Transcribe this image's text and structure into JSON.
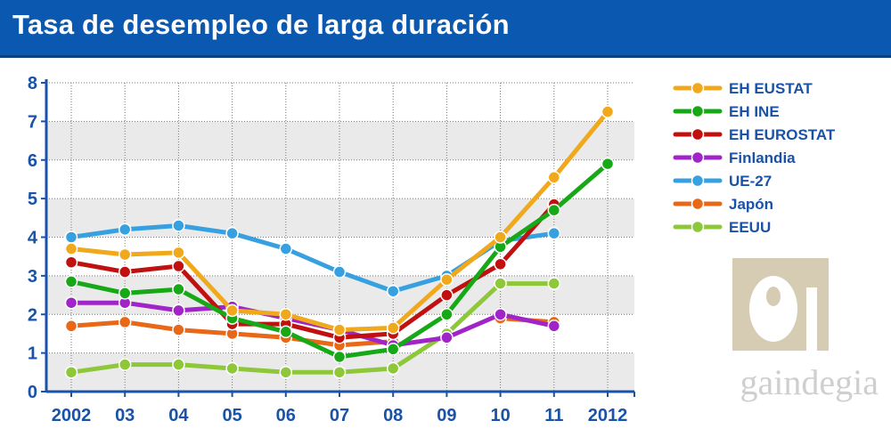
{
  "title": "Tasa de desempleo de larga duración",
  "logo_text": "gaindegia",
  "colors": {
    "axis": "#1a52a8",
    "grid": "#777777",
    "band": "#eaeaea",
    "logo": "#d6ccb4"
  },
  "chart_data": {
    "type": "line",
    "title": "Tasa de desempleo de larga duración",
    "xlabel": "",
    "ylabel": "",
    "categories": [
      "2002",
      "03",
      "04",
      "05",
      "06",
      "07",
      "08",
      "09",
      "10",
      "11",
      "2012"
    ],
    "ylim": [
      0,
      8
    ],
    "yticks": [
      "0",
      "1",
      "2",
      "3",
      "4",
      "5",
      "6",
      "7",
      "8"
    ],
    "grid": true,
    "legend_position": "right",
    "series": [
      {
        "name": "EH EUSTAT",
        "color": "#f0a81c",
        "values": [
          3.7,
          3.55,
          3.6,
          2.1,
          2.0,
          1.6,
          1.65,
          2.9,
          4.0,
          5.55,
          7.25
        ]
      },
      {
        "name": "EH INE",
        "color": "#16a816",
        "values": [
          2.85,
          2.55,
          2.65,
          1.9,
          1.55,
          0.9,
          1.1,
          2.0,
          3.75,
          4.7,
          5.9
        ]
      },
      {
        "name": "EH EUROSTAT",
        "color": "#c01010",
        "values": [
          3.35,
          3.1,
          3.25,
          1.75,
          1.75,
          1.4,
          1.5,
          2.5,
          3.3,
          4.85,
          null
        ]
      },
      {
        "name": "Finlandia",
        "color": "#a024c8",
        "values": [
          2.3,
          2.3,
          2.1,
          2.2,
          1.9,
          1.6,
          1.2,
          1.4,
          2.0,
          1.7,
          null
        ]
      },
      {
        "name": "UE-27",
        "color": "#36a0e0",
        "values": [
          4.0,
          4.2,
          4.3,
          4.1,
          3.7,
          3.1,
          2.6,
          3.0,
          3.9,
          4.1,
          null
        ]
      },
      {
        "name": "Japón",
        "color": "#e86818",
        "values": [
          1.7,
          1.8,
          1.6,
          1.5,
          1.4,
          1.2,
          1.3,
          null,
          1.9,
          1.8,
          null
        ]
      },
      {
        "name": "EEUU",
        "color": "#8ec83a",
        "values": [
          0.5,
          0.7,
          0.7,
          0.6,
          0.5,
          0.5,
          0.6,
          1.5,
          2.8,
          2.8,
          null
        ]
      }
    ]
  }
}
